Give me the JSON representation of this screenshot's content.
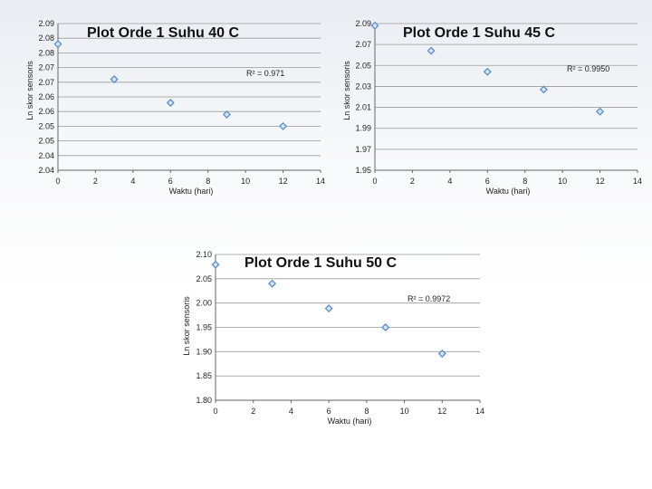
{
  "chart_data": [
    {
      "type": "scatter",
      "title": "Plot Orde 1 Suhu 40 C",
      "xlabel": "Waktu (hari)",
      "ylabel": "Ln skor sensoris",
      "annotation": "R² = 0.971",
      "xticks": [
        "0",
        "2",
        "4",
        "6",
        "8",
        "10",
        "12",
        "14"
      ],
      "yticks": [
        "2.04",
        "2.04",
        "2.05",
        "2.05",
        "2.06",
        "2.06",
        "2.07",
        "2.07",
        "2.08",
        "2.08",
        "2.09"
      ],
      "xlim": [
        0,
        14
      ],
      "ylim": [
        2.04,
        2.09
      ],
      "grid": "horizontal",
      "marker_color": "#5b8ec9",
      "x": [
        0,
        3,
        6,
        9,
        12
      ],
      "y": [
        2.083,
        2.071,
        2.063,
        2.059,
        2.055
      ]
    },
    {
      "type": "scatter",
      "title": "Plot Orde 1 Suhu 45 C",
      "xlabel": "Waktu (hari)",
      "ylabel": "Ln skor sensoris",
      "annotation": "R² = 0.9950",
      "xticks": [
        "0",
        "2",
        "4",
        "6",
        "8",
        "10",
        "12",
        "14"
      ],
      "yticks": [
        "1.95",
        "1.97",
        "1.99",
        "2.01",
        "2.03",
        "2.05",
        "2.07",
        "2.09"
      ],
      "xlim": [
        0,
        14
      ],
      "ylim": [
        1.95,
        2.09
      ],
      "grid": "horizontal",
      "marker_color": "#5b8ec9",
      "x": [
        0,
        3,
        6,
        9,
        12
      ],
      "y": [
        2.088,
        2.064,
        2.044,
        2.027,
        2.006
      ]
    },
    {
      "type": "scatter",
      "title": "Plot Orde 1 Suhu 50 C",
      "xlabel": "Waktu (hari)",
      "ylabel": "Ln skor sensoris",
      "annotation": "R² = 0.9972",
      "xticks": [
        "0",
        "2",
        "4",
        "6",
        "8",
        "10",
        "12",
        "14"
      ],
      "yticks": [
        "1.80",
        "1.85",
        "1.90",
        "1.95",
        "2.00",
        "2.05",
        "2.10"
      ],
      "xlim": [
        0,
        14
      ],
      "ylim": [
        1.8,
        2.1
      ],
      "grid": "horizontal",
      "marker_color": "#5b8ec9",
      "x": [
        0,
        3,
        6,
        9,
        12
      ],
      "y": [
        2.079,
        2.04,
        1.989,
        1.95,
        1.896
      ]
    }
  ]
}
